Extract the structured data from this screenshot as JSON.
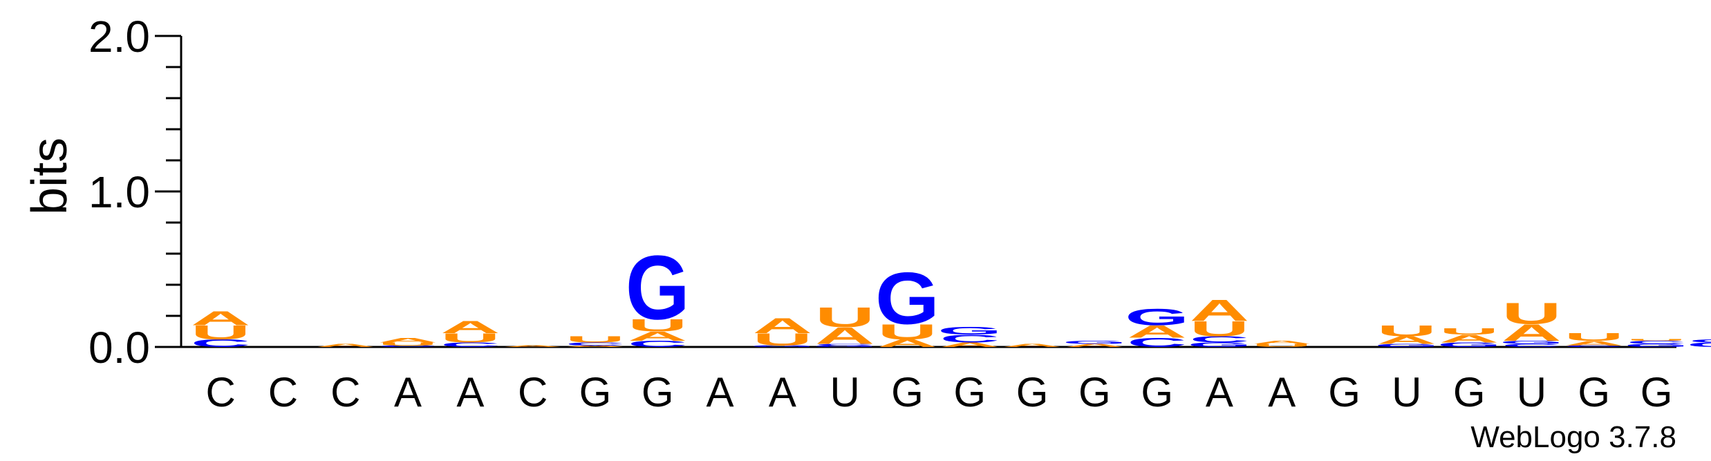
{
  "chart_data": {
    "type": "sequence-logo",
    "ylabel": "bits",
    "ylim": [
      0,
      2.0
    ],
    "y_ticks": [
      "0.0",
      "1.0",
      "2.0"
    ],
    "y_tick_values": [
      0,
      1,
      2
    ],
    "minor_tick_step": 0.2,
    "colors": {
      "A": "#ff8c00",
      "U": "#ff8c00",
      "G": "#0000ff",
      "C": "#0000ff"
    },
    "x_labels": [
      "C",
      "C",
      "C",
      "A",
      "A",
      "C",
      "G",
      "G",
      "A",
      "A",
      "U",
      "G",
      "G",
      "G",
      "G",
      "G",
      "A",
      "A",
      "G",
      "U",
      "G",
      "U",
      "G",
      "G"
    ],
    "positions": [
      {
        "stack": [
          {
            "letter": "C",
            "bits": 0.05
          },
          {
            "letter": "U",
            "bits": 0.09
          },
          {
            "letter": "A",
            "bits": 0.09
          }
        ]
      },
      {
        "stack": []
      },
      {
        "stack": [
          {
            "letter": "A",
            "bits": 0.02
          }
        ]
      },
      {
        "stack": [
          {
            "letter": "C",
            "bits": 0.01
          },
          {
            "letter": "U",
            "bits": 0.02
          },
          {
            "letter": "A",
            "bits": 0.03
          }
        ]
      },
      {
        "stack": [
          {
            "letter": "C",
            "bits": 0.03
          },
          {
            "letter": "U",
            "bits": 0.06
          },
          {
            "letter": "A",
            "bits": 0.08
          }
        ]
      },
      {
        "stack": [
          {
            "letter": "A",
            "bits": 0.01
          }
        ]
      },
      {
        "stack": [
          {
            "letter": "A",
            "bits": 0.01
          },
          {
            "letter": "C",
            "bits": 0.02
          },
          {
            "letter": "U",
            "bits": 0.04
          }
        ]
      },
      {
        "stack": [
          {
            "letter": "C",
            "bits": 0.04
          },
          {
            "letter": "A",
            "bits": 0.06
          },
          {
            "letter": "U",
            "bits": 0.08
          },
          {
            "letter": "G",
            "bits": 0.42
          }
        ]
      },
      {
        "stack": []
      },
      {
        "stack": [
          {
            "letter": "G",
            "bits": 0.01
          },
          {
            "letter": "U",
            "bits": 0.08
          },
          {
            "letter": "A",
            "bits": 0.1
          }
        ]
      },
      {
        "stack": [
          {
            "letter": "G",
            "bits": 0.01
          },
          {
            "letter": "C",
            "bits": 0.01
          },
          {
            "letter": "A",
            "bits": 0.11
          },
          {
            "letter": "U",
            "bits": 0.13
          }
        ]
      },
      {
        "stack": [
          {
            "letter": "A",
            "bits": 0.05
          },
          {
            "letter": "U",
            "bits": 0.1
          },
          {
            "letter": "G",
            "bits": 0.34
          }
        ]
      },
      {
        "stack": [
          {
            "letter": "A",
            "bits": 0.03
          },
          {
            "letter": "C",
            "bits": 0.05
          },
          {
            "letter": "G",
            "bits": 0.05
          }
        ]
      },
      {
        "stack": [
          {
            "letter": "A",
            "bits": 0.02
          }
        ]
      },
      {
        "stack": [
          {
            "letter": "A",
            "bits": 0.02
          },
          {
            "letter": "G",
            "bits": 0.02
          }
        ]
      },
      {
        "stack": [
          {
            "letter": "C",
            "bits": 0.06
          },
          {
            "letter": "A",
            "bits": 0.08
          },
          {
            "letter": "G",
            "bits": 0.11
          }
        ]
      },
      {
        "stack": [
          {
            "letter": "G",
            "bits": 0.03
          },
          {
            "letter": "C",
            "bits": 0.04
          },
          {
            "letter": "U",
            "bits": 0.1
          },
          {
            "letter": "A",
            "bits": 0.14
          }
        ]
      },
      {
        "stack": [
          {
            "letter": "U",
            "bits": 0.02
          },
          {
            "letter": "A",
            "bits": 0.02
          }
        ]
      },
      {
        "stack": []
      },
      {
        "stack": [
          {
            "letter": "G",
            "bits": 0.02
          },
          {
            "letter": "A",
            "bits": 0.05
          },
          {
            "letter": "U",
            "bits": 0.07
          }
        ]
      },
      {
        "stack": [
          {
            "letter": "G",
            "bits": 0.03
          },
          {
            "letter": "A",
            "bits": 0.05
          },
          {
            "letter": "U",
            "bits": 0.04
          }
        ]
      },
      {
        "stack": [
          {
            "letter": "C",
            "bits": 0.02
          },
          {
            "letter": "G",
            "bits": 0.02
          },
          {
            "letter": "A",
            "bits": 0.11
          },
          {
            "letter": "U",
            "bits": 0.14
          }
        ]
      },
      {
        "stack": [
          {
            "letter": "C",
            "bits": 0.01
          },
          {
            "letter": "A",
            "bits": 0.03
          },
          {
            "letter": "U",
            "bits": 0.05
          }
        ]
      },
      {
        "stack": [
          {
            "letter": "G",
            "bits": 0.02
          },
          {
            "letter": "C",
            "bits": 0.02
          },
          {
            "letter": "U",
            "bits": 0.01
          }
        ]
      }
    ],
    "trailing_stack": [
      {
        "letter": "G",
        "bits": 0.03
      },
      {
        "letter": "C",
        "bits": 0.02
      }
    ]
  },
  "footer": {
    "credit": "WebLogo 3.7.8"
  }
}
